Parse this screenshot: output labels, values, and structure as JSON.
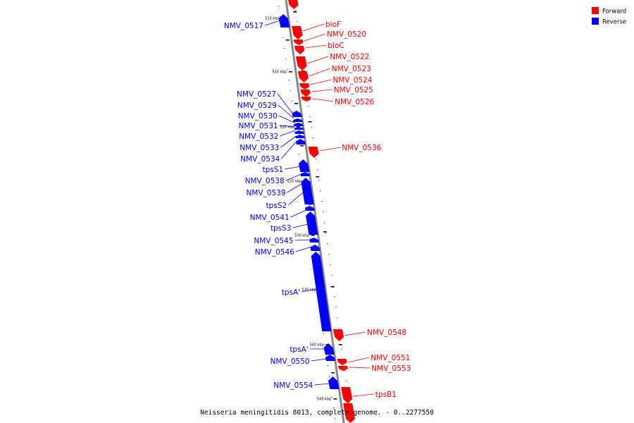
{
  "caption": "Neisseria meningitidis 8013, complete genome. - 0..2277550",
  "legend": [
    {
      "label": "Forward",
      "color": "#ff0000"
    },
    {
      "label": "Reverse",
      "color": "#0000ff"
    }
  ],
  "colors": {
    "forward": "#ff0000",
    "reverse": "#0000ff",
    "backbone": "#888888"
  },
  "kbp_labels": [
    "510 kbp",
    "515 kbp",
    "520 kbp",
    "525 kbp",
    "530 kbp",
    "535 kbp",
    "540 kbp",
    "545 kbp"
  ],
  "forward_genes": [
    "bioF",
    "NMV_0520",
    "bioC",
    "NMV_0522",
    "NMV_0523",
    "NMV_0524",
    "NMV_0525",
    "NMV_0526",
    "NMV_0536",
    "NMV_0548",
    "NMV_0551",
    "NMV_0553",
    "tpsB1"
  ],
  "reverse_genes": [
    "NMV_0517",
    "NMV_0527",
    "NMV_0529",
    "NMV_0530",
    "NMV_0531",
    "NMV_0532",
    "NMV_0533",
    "NMV_0534",
    "tpsS1",
    "NMV_0538",
    "NMV_0539",
    "tpsS2",
    "NMV_0541",
    "tpsS3",
    "NMV_0545",
    "NMV_0546",
    "tpsA'",
    "tpsA'",
    "NMV_0550",
    "NMV_0554"
  ]
}
